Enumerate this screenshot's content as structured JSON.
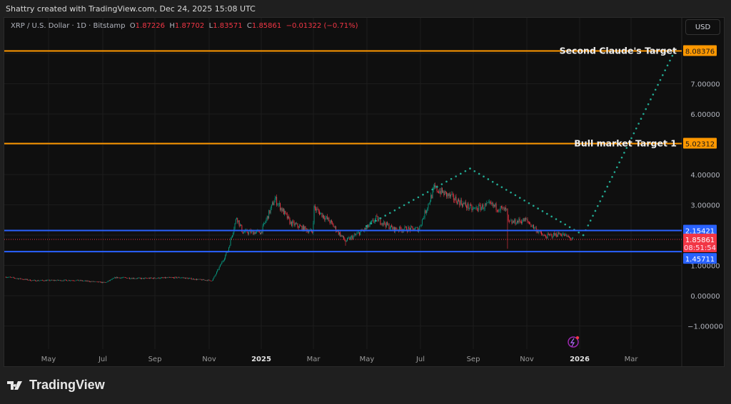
{
  "header": {
    "credit": "Shattry created with TradingView.com, Dec 24, 2025 15:08 UTC"
  },
  "legend": {
    "symbol": "XRP / U.S. Dollar · 1D · Bitstamp",
    "open_label": "O",
    "open": "1.87226",
    "high_label": "H",
    "high": "1.87702",
    "low_label": "L",
    "low": "1.83571",
    "close_label": "C",
    "close": "1.85861",
    "change": "−0.01322 (−0.71%)"
  },
  "currency_button": "USD",
  "price_axis": {
    "ticks": [
      "7.00000",
      "6.00000",
      "4.00000",
      "3.00000",
      "1.00000",
      "0.00000",
      "−1.00000"
    ]
  },
  "time_axis": {
    "ticks": [
      "May",
      "Jul",
      "Sep",
      "Nov",
      "2025",
      "Mar",
      "May",
      "Jul",
      "Sep",
      "Nov",
      "2026",
      "Mar"
    ]
  },
  "levels": [
    {
      "label": "Second Claude's Target",
      "price": "8.08376",
      "color": "#ff9800"
    },
    {
      "label": "Bull market Target 1",
      "price": "5.02312",
      "color": "#ff9800"
    },
    {
      "label": "",
      "price": "2.15421",
      "color": "#2962ff"
    },
    {
      "label": "",
      "price": "1.45711",
      "color": "#2962ff"
    }
  ],
  "current_price": {
    "price": "1.85861",
    "countdown": "08:51:54",
    "color": "#f23645"
  },
  "colors": {
    "up": "#089981",
    "down": "#f23645",
    "projection": "#22ab94"
  },
  "chart_data": {
    "type": "candlestick",
    "symbol": "XRP/USD",
    "interval": "1D",
    "ylim": [
      -1.3,
      8.5
    ],
    "price_keypoints": [
      [
        "2024-03-13",
        0.62
      ],
      [
        "2024-04-13",
        0.5
      ],
      [
        "2024-06-01",
        0.51
      ],
      [
        "2024-07-05",
        0.43
      ],
      [
        "2024-07-17",
        0.6
      ],
      [
        "2024-08-15",
        0.57
      ],
      [
        "2024-09-30",
        0.6
      ],
      [
        "2024-10-20",
        0.53
      ],
      [
        "2024-11-05",
        0.5
      ],
      [
        "2024-11-16",
        1.1
      ],
      [
        "2024-11-23",
        1.5
      ],
      [
        "2024-12-03",
        2.6
      ],
      [
        "2024-12-10",
        2.1
      ],
      [
        "2024-12-31",
        2.1
      ],
      [
        "2025-01-16",
        3.2
      ],
      [
        "2025-02-03",
        2.4
      ],
      [
        "2025-02-28",
        2.1
      ],
      [
        "2025-03-02",
        2.9
      ],
      [
        "2025-03-20",
        2.45
      ],
      [
        "2025-04-07",
        1.8
      ],
      [
        "2025-04-30",
        2.2
      ],
      [
        "2025-05-12",
        2.55
      ],
      [
        "2025-06-01",
        2.2
      ],
      [
        "2025-06-30",
        2.2
      ],
      [
        "2025-07-18",
        3.55
      ],
      [
        "2025-08-10",
        3.2
      ],
      [
        "2025-08-31",
        2.85
      ],
      [
        "2025-09-20",
        3.0
      ],
      [
        "2025-10-09",
        2.8
      ],
      [
        "2025-10-11",
        2.4
      ],
      [
        "2025-10-31",
        2.5
      ],
      [
        "2025-11-21",
        1.95
      ],
      [
        "2025-12-10",
        2.05
      ],
      [
        "2025-12-24",
        1.86
      ]
    ],
    "projection": [
      [
        "2025-05-01",
        2.3
      ],
      [
        "2025-08-28",
        4.2
      ],
      [
        "2026-01-05",
        2.0
      ],
      [
        "2026-04-20",
        8.08376
      ]
    ]
  },
  "branding": {
    "logo": "TradingView"
  }
}
